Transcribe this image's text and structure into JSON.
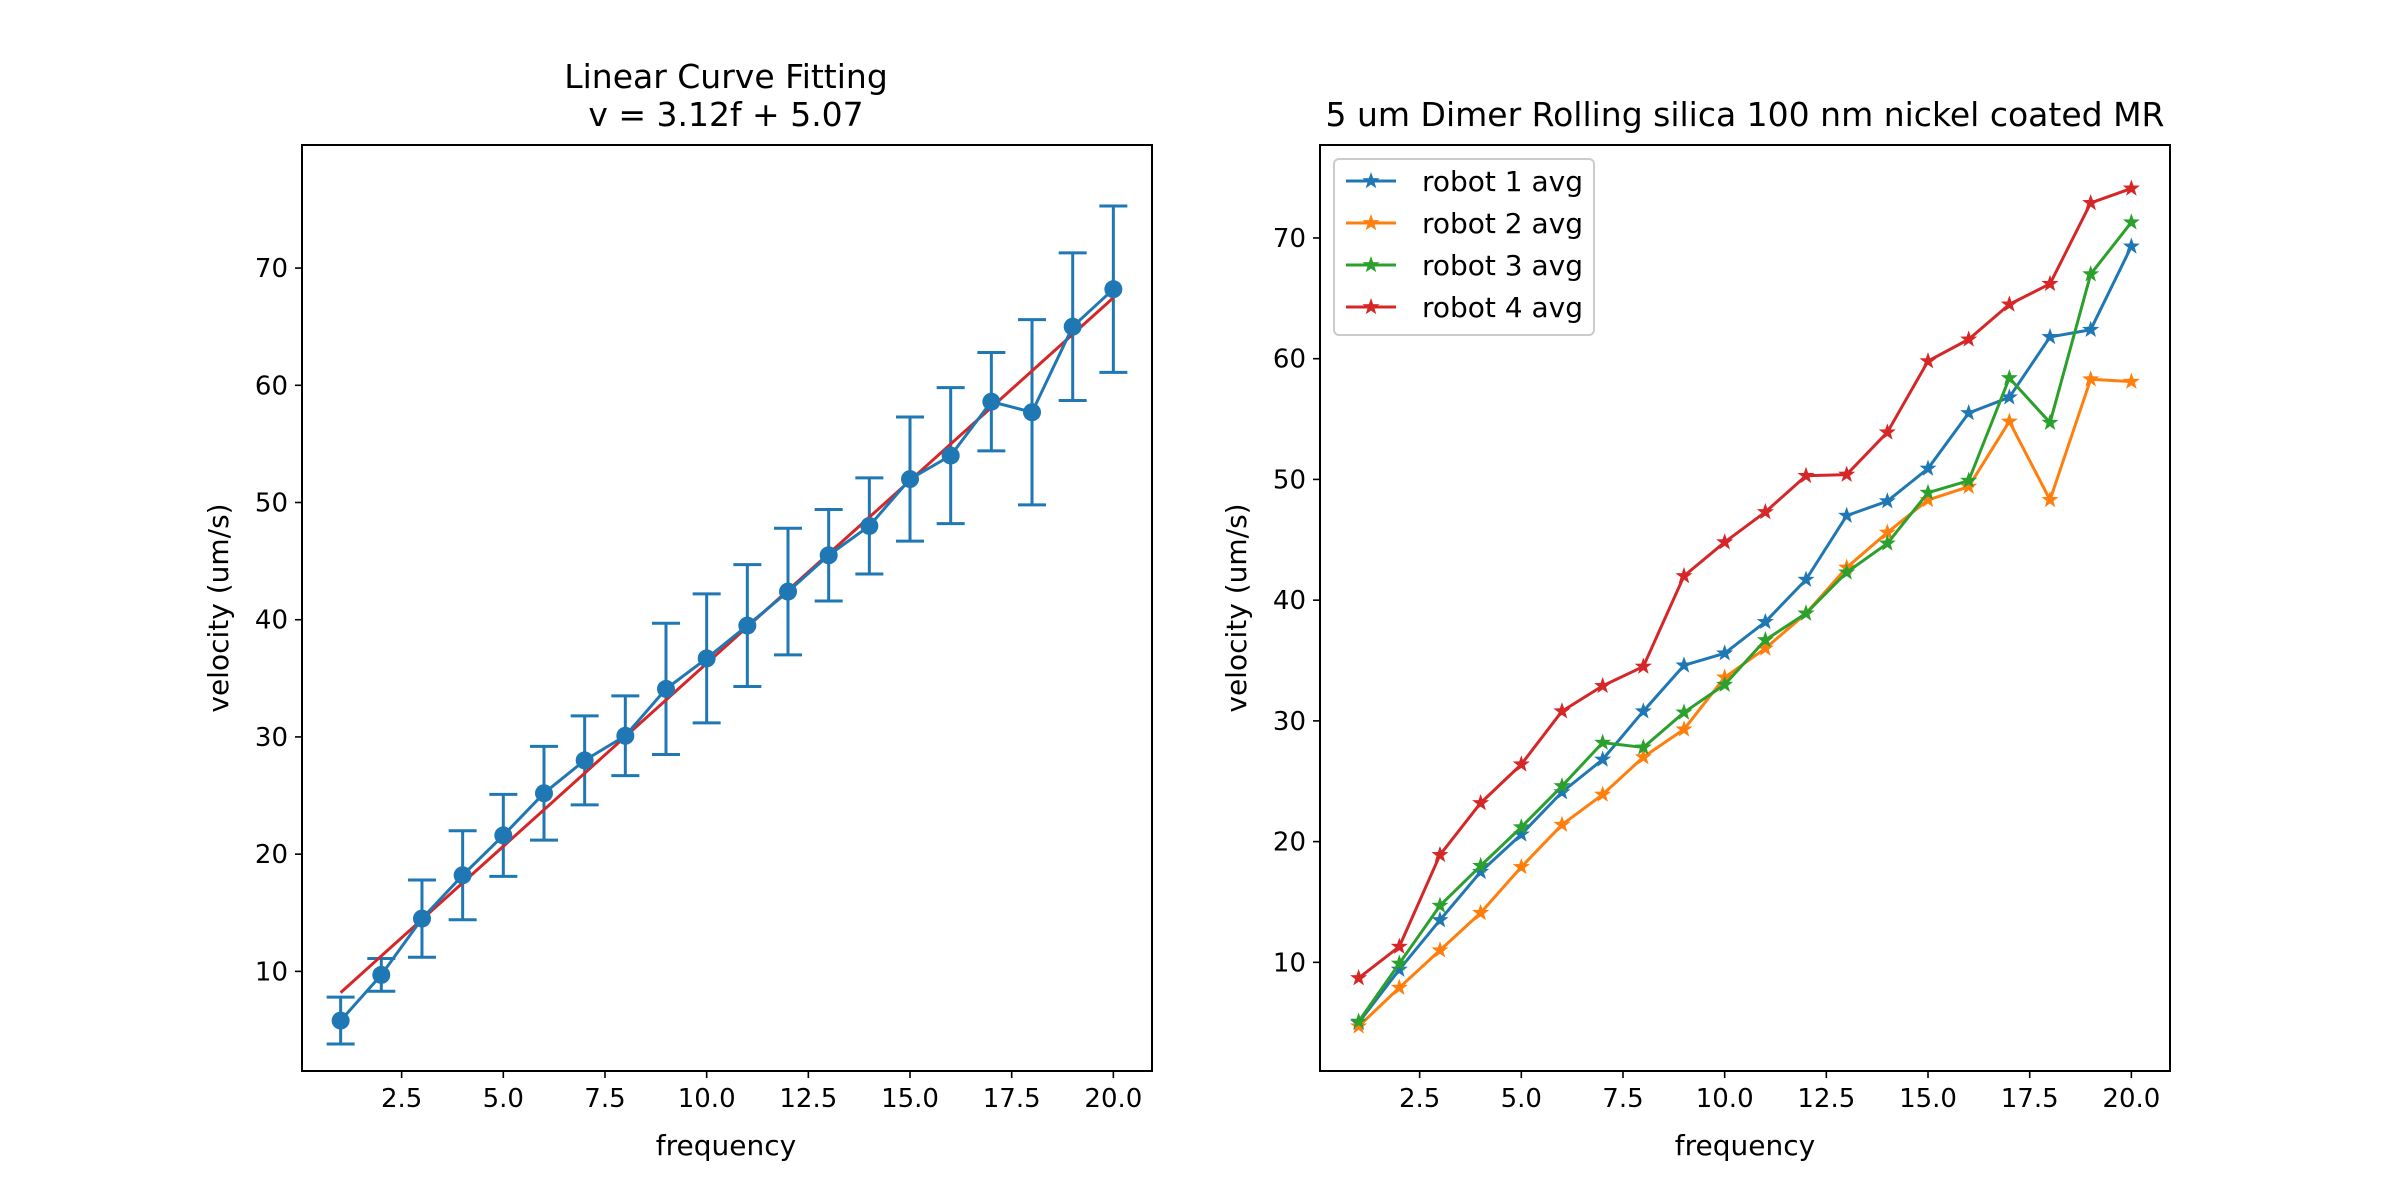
{
  "chart_data": [
    {
      "type": "line",
      "title_lines": [
        "Linear Curve Fitting",
        "v = 3.12f + 5.07"
      ],
      "xlabel": "frequency",
      "ylabel": "velocity (um/s)",
      "xlim": [
        0.05,
        20.95
      ],
      "ylim": [
        1.5,
        80.5
      ],
      "xticks": [
        2.5,
        5.0,
        7.5,
        10.0,
        12.5,
        15.0,
        17.5,
        20.0
      ],
      "xtick_labels": [
        "2.5",
        "5.0",
        "7.5",
        "10.0",
        "12.5",
        "15.0",
        "17.5",
        "20.0"
      ],
      "yticks": [
        10,
        20,
        30,
        40,
        50,
        60,
        70
      ],
      "ytick_labels": [
        "10",
        "20",
        "30",
        "40",
        "50",
        "60",
        "70"
      ],
      "grid": false,
      "x": [
        1,
        2,
        3,
        4,
        5,
        6,
        7,
        8,
        9,
        10,
        11,
        12,
        13,
        14,
        15,
        16,
        17,
        18,
        19,
        20
      ],
      "mean_series": {
        "color": "#1f77b4",
        "marker": "circle",
        "values": [
          5.8,
          9.7,
          14.5,
          18.2,
          21.6,
          25.2,
          28.0,
          30.1,
          34.1,
          36.7,
          39.5,
          42.4,
          45.5,
          48.0,
          52.0,
          54.0,
          58.6,
          57.7,
          65.0,
          68.2
        ],
        "error": [
          2.0,
          1.4,
          3.3,
          3.8,
          3.5,
          4.0,
          3.8,
          3.4,
          5.6,
          5.5,
          5.2,
          5.4,
          3.9,
          4.1,
          5.3,
          5.8,
          4.2,
          7.9,
          6.3,
          7.1
        ]
      },
      "fit_line": {
        "color": "#d62728",
        "slope": 3.12,
        "intercept": 5.07,
        "x_range": [
          1,
          20
        ]
      }
    },
    {
      "type": "line",
      "title": "5 um Dimer Rolling silica 100 nm nickel coated MR",
      "xlabel": "frequency",
      "ylabel": "velocity (um/s)",
      "xlim": [
        0.05,
        20.95
      ],
      "ylim": [
        1.0,
        77.7
      ],
      "xticks": [
        2.5,
        5.0,
        7.5,
        10.0,
        12.5,
        15.0,
        17.5,
        20.0
      ],
      "xtick_labels": [
        "2.5",
        "5.0",
        "7.5",
        "10.0",
        "12.5",
        "15.0",
        "17.5",
        "20.0"
      ],
      "yticks": [
        10,
        20,
        30,
        40,
        50,
        60,
        70
      ],
      "ytick_labels": [
        "10",
        "20",
        "30",
        "40",
        "50",
        "60",
        "70"
      ],
      "grid": false,
      "legend_position": "upper-left",
      "x": [
        1,
        2,
        3,
        4,
        5,
        6,
        7,
        8,
        9,
        10,
        11,
        12,
        13,
        14,
        15,
        16,
        17,
        18,
        19,
        20
      ],
      "series": [
        {
          "name": "robot 1 avg",
          "color": "#1f77b4",
          "marker": "star",
          "values": [
            5.0,
            9.4,
            13.5,
            17.5,
            20.6,
            24.1,
            26.8,
            30.8,
            34.6,
            35.6,
            38.2,
            41.7,
            47.0,
            48.2,
            50.9,
            55.5,
            56.8,
            61.8,
            62.4,
            69.3
          ]
        },
        {
          "name": "robot 2 avg",
          "color": "#ff7f0e",
          "marker": "star",
          "values": [
            4.7,
            7.9,
            11.0,
            14.1,
            17.9,
            21.4,
            23.9,
            27.0,
            29.3,
            33.6,
            36.0,
            38.9,
            42.7,
            45.6,
            48.3,
            49.4,
            54.8,
            48.3,
            58.3,
            58.1
          ]
        },
        {
          "name": "robot 3 avg",
          "color": "#2ca02c",
          "marker": "star",
          "values": [
            5.1,
            9.9,
            14.7,
            18.0,
            21.2,
            24.6,
            28.2,
            27.8,
            30.7,
            33.0,
            36.7,
            38.9,
            42.3,
            44.7,
            48.9,
            49.9,
            58.4,
            54.7,
            67.0,
            71.3
          ]
        },
        {
          "name": "robot 4 avg",
          "color": "#d62728",
          "marker": "star",
          "values": [
            8.7,
            11.3,
            18.9,
            23.2,
            26.4,
            30.8,
            32.9,
            34.5,
            42.0,
            44.8,
            47.3,
            50.3,
            50.4,
            53.9,
            59.8,
            61.6,
            64.5,
            66.2,
            72.9,
            74.1
          ]
        }
      ]
    }
  ]
}
